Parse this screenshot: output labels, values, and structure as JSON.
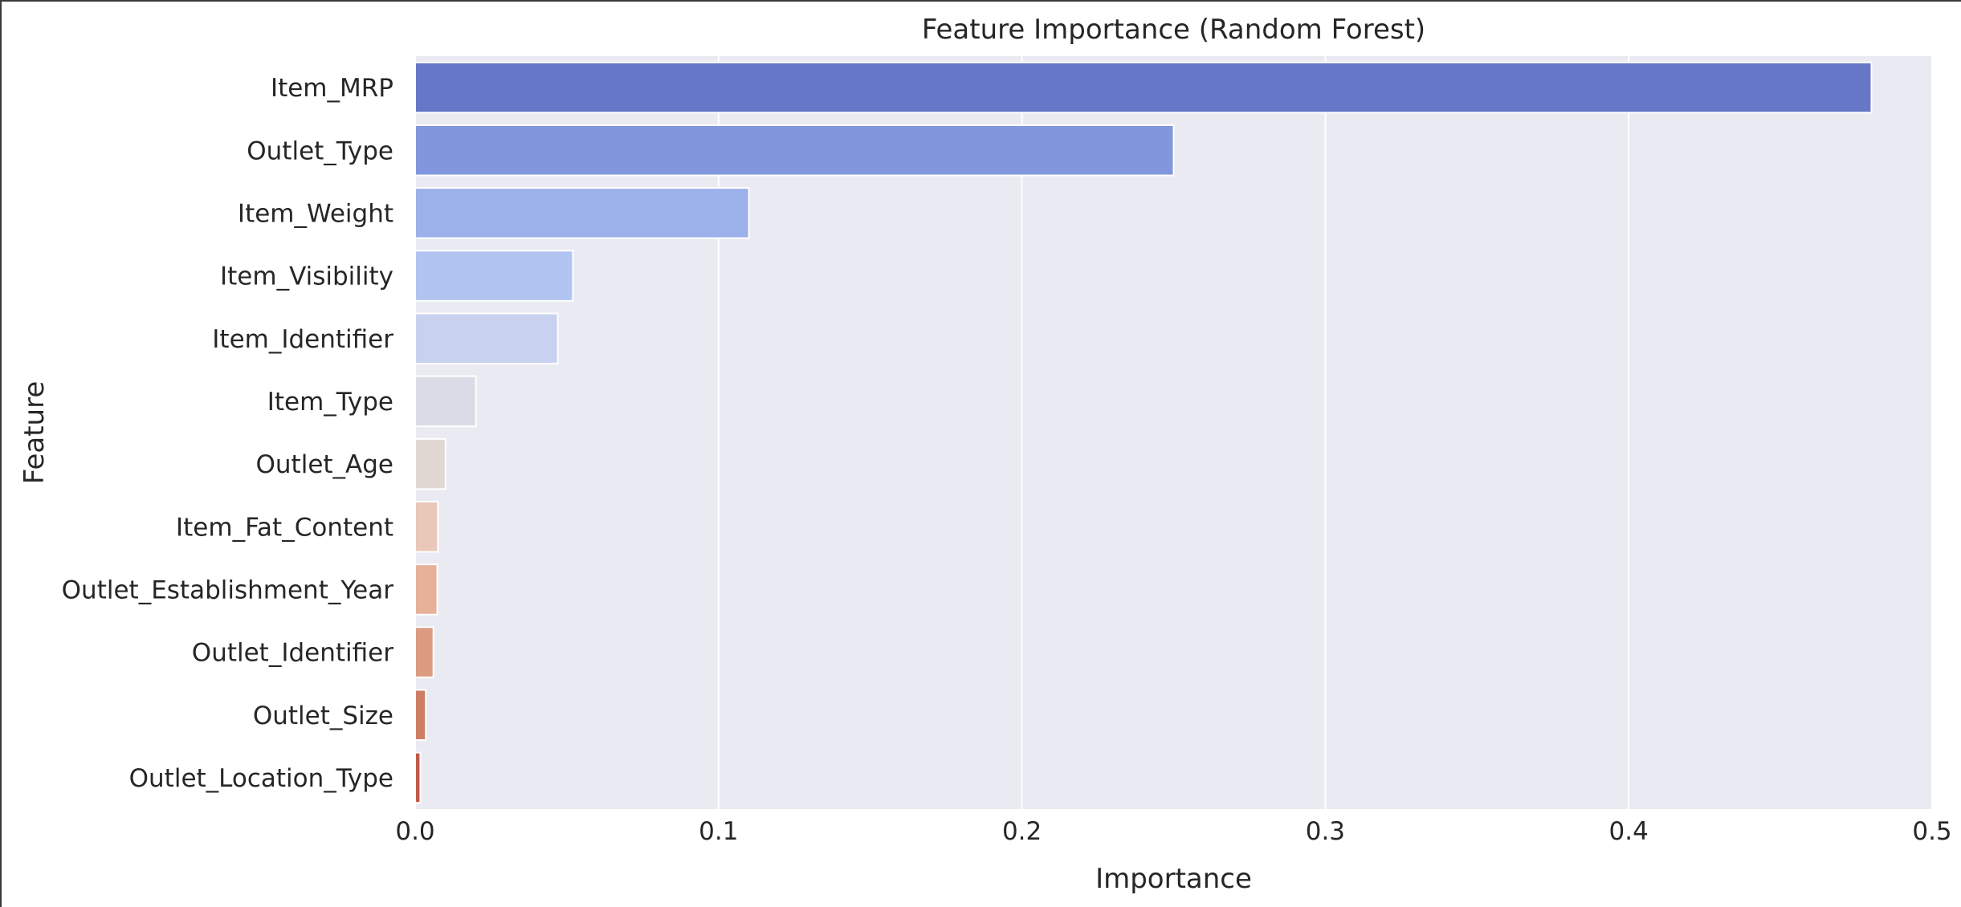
{
  "chart_data": {
    "type": "bar",
    "orientation": "horizontal",
    "title": "Feature Importance (Random Forest)",
    "xlabel": "Importance",
    "ylabel": "Feature",
    "xlim": [
      0,
      0.5
    ],
    "xticks": [
      0.0,
      0.1,
      0.2,
      0.3,
      0.4,
      0.5
    ],
    "xtick_labels": [
      "0.0",
      "0.1",
      "0.2",
      "0.3",
      "0.4",
      "0.5"
    ],
    "grid": true,
    "background": "#EAEAF2",
    "categories": [
      "Item_MRP",
      "Outlet_Type",
      "Item_Weight",
      "Item_Visibility",
      "Item_Identifier",
      "Item_Type",
      "Outlet_Age",
      "Item_Fat_Content",
      "Outlet_Establishment_Year",
      "Outlet_Identifier",
      "Outlet_Size",
      "Outlet_Location_Type"
    ],
    "values": [
      0.48,
      0.25,
      0.11,
      0.052,
      0.047,
      0.02,
      0.01,
      0.0075,
      0.0073,
      0.006,
      0.0035,
      0.0017
    ],
    "colors": [
      "#6777C7",
      "#8197DD",
      "#9CB0EA",
      "#B2C4F1",
      "#C8D2F0",
      "#D9DCE6",
      "#E2D8D3",
      "#E9C7B9",
      "#E5B198",
      "#DA9B80",
      "#CF7E66",
      "#C0594C"
    ]
  }
}
